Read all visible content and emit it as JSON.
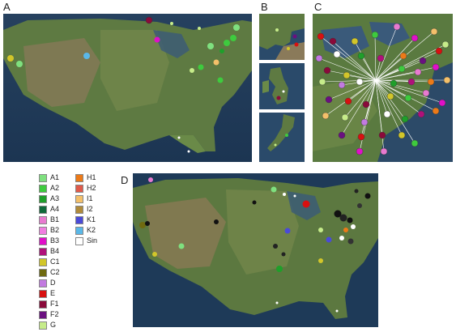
{
  "panels": {
    "A": {
      "label": "A"
    },
    "B": {
      "label": "B"
    },
    "C": {
      "label": "C"
    },
    "D": {
      "label": "D"
    }
  },
  "legend": {
    "col1": [
      {
        "code": "A1",
        "color": "#7fe07f"
      },
      {
        "code": "A2",
        "color": "#3ecb3e"
      },
      {
        "code": "A3",
        "color": "#1f9f2a"
      },
      {
        "code": "A4",
        "color": "#0f6a3a"
      },
      {
        "code": "B1",
        "color": "#e87ad0"
      },
      {
        "code": "B2",
        "color": "#f07ee0"
      },
      {
        "code": "B3",
        "color": "#e010c8"
      },
      {
        "code": "B4",
        "color": "#b0107a"
      },
      {
        "code": "C1",
        "color": "#d2c62a"
      },
      {
        "code": "C2",
        "color": "#6f6a10"
      },
      {
        "code": "D",
        "color": "#c27ae0"
      },
      {
        "code": "E",
        "color": "#d81010"
      },
      {
        "code": "F1",
        "color": "#8a0a3a"
      },
      {
        "code": "F2",
        "color": "#6a1080"
      },
      {
        "code": "G",
        "color": "#c6ec8a"
      }
    ],
    "col2": [
      {
        "code": "H1",
        "color": "#ec7a18"
      },
      {
        "code": "H2",
        "color": "#e05a4a"
      },
      {
        "code": "I1",
        "color": "#f4c06a"
      },
      {
        "code": "I2",
        "color": "#b08a3a"
      },
      {
        "code": "K1",
        "color": "#4a4ad8"
      },
      {
        "code": "K2",
        "color": "#5ab8e8"
      },
      {
        "code": "Sin",
        "color": "#ffffff"
      }
    ]
  }
}
